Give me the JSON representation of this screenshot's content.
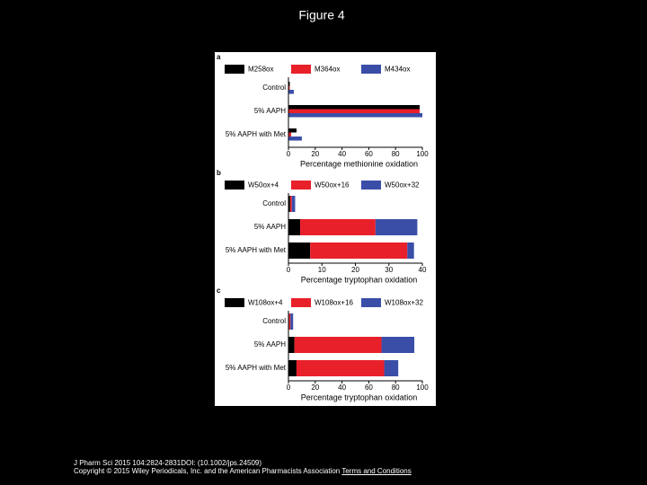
{
  "title": "Figure 4",
  "chart_data": [
    {
      "type": "bar",
      "panel": "a",
      "stacked": false,
      "xlabel": "Percentage methionine oxidation",
      "categories": [
        "Control",
        "5% AAPH",
        "5% AAPH with Met"
      ],
      "series": [
        {
          "name": "M258ox",
          "color": "#000000",
          "values": [
            1,
            98,
            6
          ]
        },
        {
          "name": "M364ox",
          "color": "#e8202a",
          "values": [
            1,
            98,
            2
          ]
        },
        {
          "name": "M434ox",
          "color": "#3a4ea8",
          "values": [
            4,
            100,
            10
          ]
        }
      ],
      "xlim": [
        0,
        100
      ],
      "xticks": [
        0,
        20,
        40,
        60,
        80,
        100
      ]
    },
    {
      "type": "bar",
      "panel": "b",
      "stacked": true,
      "xlabel": "Percentage tryptophan oxidation",
      "categories": [
        "Control",
        "5% AAPH",
        "5% AAPH with Met"
      ],
      "series": [
        {
          "name": "W50ox+4",
          "color": "#000000",
          "values": [
            0.5,
            3.5,
            6.5
          ]
        },
        {
          "name": "W50ox+16",
          "color": "#e8202a",
          "values": [
            0.5,
            22.5,
            29
          ]
        },
        {
          "name": "W50ox+32",
          "color": "#3a4ea8",
          "values": [
            1,
            12.5,
            2
          ]
        }
      ],
      "xlim": [
        0,
        40
      ],
      "xticks": [
        0,
        10,
        20,
        30,
        40
      ]
    },
    {
      "type": "bar",
      "panel": "c",
      "stacked": true,
      "xlabel": "Percentage tryptophan oxidation",
      "categories": [
        "Control",
        "5% AAPH",
        "5% AAPH with Met"
      ],
      "series": [
        {
          "name": "W108ox+4",
          "color": "#000000",
          "values": [
            0.5,
            4.5,
            6
          ]
        },
        {
          "name": "W108ox+16",
          "color": "#e8202a",
          "values": [
            1,
            65,
            65.5
          ]
        },
        {
          "name": "W108ox+32",
          "color": "#3a4ea8",
          "values": [
            2,
            24.5,
            10.5
          ]
        }
      ],
      "xlim": [
        0,
        100
      ],
      "xticks": [
        0,
        20,
        40,
        60,
        80,
        100
      ]
    }
  ],
  "footer": {
    "citation": "J Pharm Sci 2015 104:2824-2831DOI: (10.1002/jps.24509)",
    "copyright": "Copyright © 2015 Wiley Periodicals, Inc. and the American Pharmacists Association",
    "link": "Terms and Conditions"
  }
}
